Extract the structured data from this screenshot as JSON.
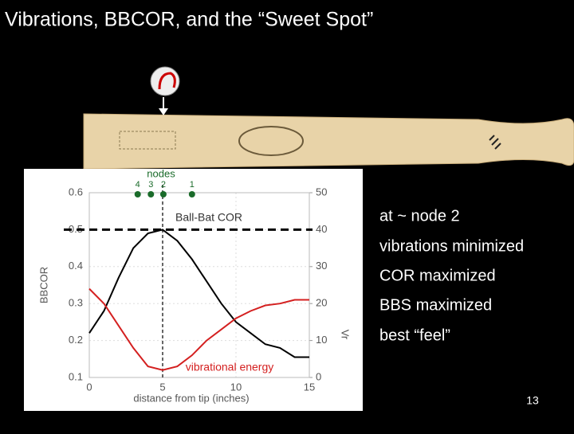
{
  "slide": {
    "title": "Vibrations, BBCOR, and the “Sweet Spot”",
    "bullets": [
      "at ~ node 2",
      "vibrations minimized",
      "COR maximized",
      "BBS maximized",
      "best “feel”"
    ],
    "page_number": "13"
  },
  "chart_data": {
    "type": "line",
    "x_label": "distance from tip (inches)",
    "y_label": "BBCOR",
    "y2_label": "Vr",
    "x": [
      0,
      1,
      2,
      3,
      4,
      5,
      6,
      7,
      8,
      9,
      10,
      11,
      12,
      13,
      14,
      15
    ],
    "series": [
      {
        "name": "Ball-Bat COR",
        "color": "#000000",
        "values": [
          0.22,
          0.28,
          0.37,
          0.45,
          0.49,
          0.5,
          0.47,
          0.42,
          0.36,
          0.3,
          0.25,
          0.22,
          0.19,
          0.18,
          0.155,
          0.155
        ]
      },
      {
        "name": "vibrational energy",
        "color": "#d42020",
        "axis": "y2",
        "values": [
          24,
          20,
          14,
          8,
          3,
          2,
          3,
          6,
          10,
          13,
          16,
          18,
          19.5,
          20,
          21,
          21
        ]
      }
    ],
    "xlim": [
      0,
      15
    ],
    "xticks": [
      0,
      5,
      10,
      15
    ],
    "ylim": [
      0.1,
      0.6
    ],
    "yticks": [
      0.1,
      0.2,
      0.3,
      0.4,
      0.5,
      0.6
    ],
    "y2lim": [
      0,
      50
    ],
    "y2ticks": [
      0,
      10,
      20,
      30,
      40,
      50
    ],
    "hline": 0.5,
    "vline": 5,
    "nodes": {
      "label": "nodes",
      "labels": [
        "4",
        "3",
        "2",
        "1"
      ],
      "positions": [
        3.3,
        4.2,
        5.05,
        7.0
      ],
      "color": "#1a6b2a"
    }
  }
}
